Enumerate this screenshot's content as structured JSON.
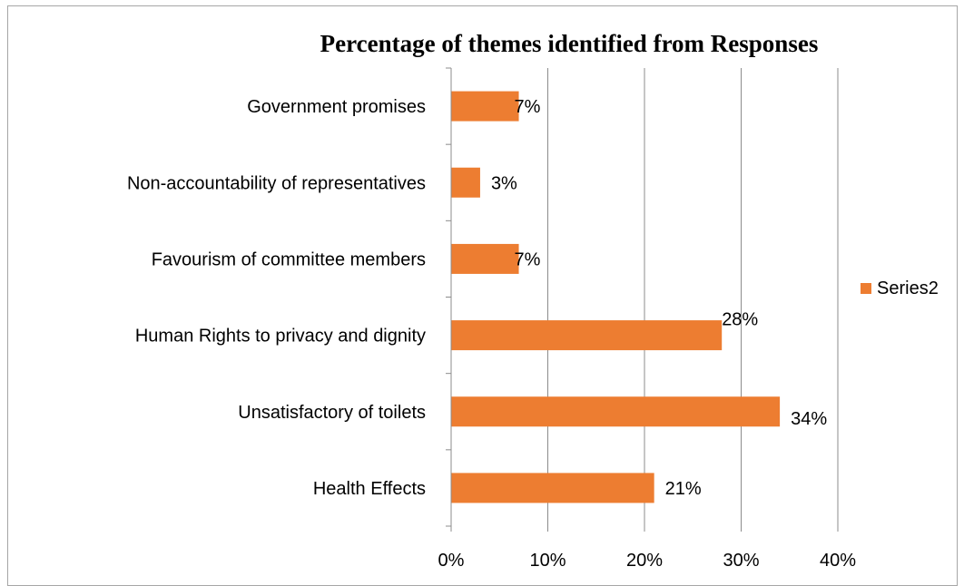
{
  "chart_data": {
    "type": "bar",
    "orientation": "horizontal",
    "title": "Percentage of themes identified from Responses",
    "categories": [
      "Government promises",
      "Non-accountability of representatives",
      "Favourism of committee members",
      "Human Rights to privacy and dignity",
      "Unsatisfactory of toilets",
      "Health Effects"
    ],
    "series": [
      {
        "name": "Series2",
        "color": "#ED7D31",
        "values": [
          7,
          3,
          7,
          28,
          34,
          21
        ],
        "labels": [
          "7%",
          "3%",
          "7%",
          "28%",
          "34%",
          "21%"
        ]
      }
    ],
    "xlim": [
      0,
      40
    ],
    "xticks": [
      0,
      10,
      20,
      30,
      40
    ],
    "xtick_labels": [
      "0%",
      "10%",
      "20%",
      "30%",
      "40%"
    ],
    "grid": "vertical",
    "legend": "right"
  }
}
